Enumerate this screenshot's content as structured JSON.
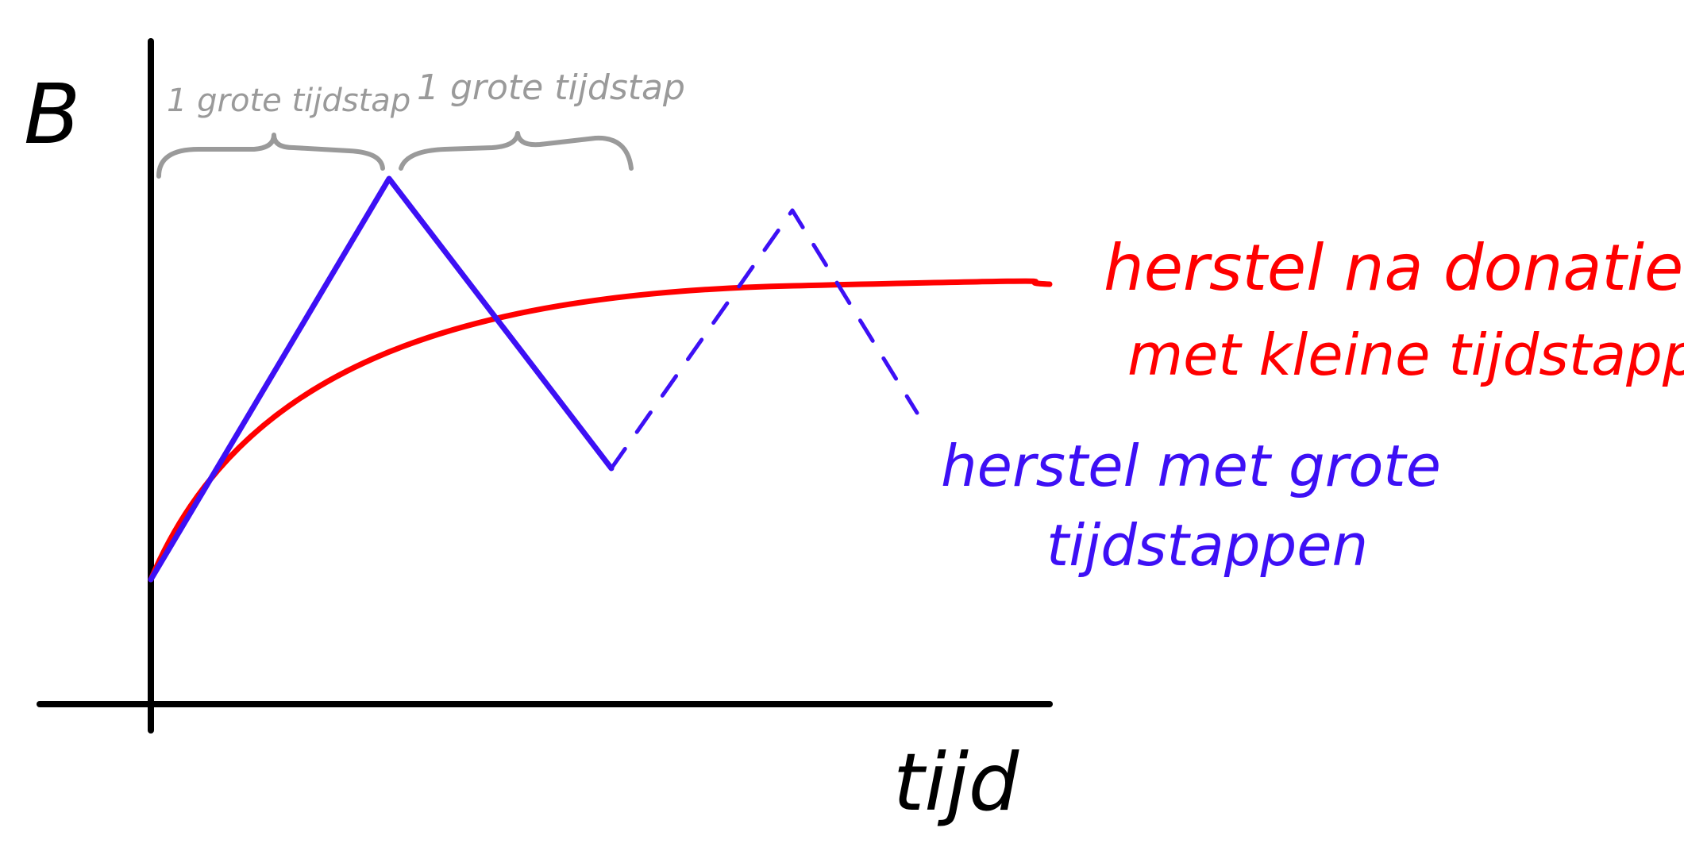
{
  "axes": {
    "y_label": "B",
    "x_label": "tijd"
  },
  "braces": {
    "first": "1 grote tijdstap",
    "second": "1 grote tijdstap"
  },
  "legend": {
    "red_line1": "herstel na donatie",
    "red_line2": "met kleine tijdstappen",
    "blue_line1": "herstel met grote",
    "blue_line2": "tijdstappen"
  },
  "colors": {
    "axes": "#000000",
    "red_curve": "#ff0000",
    "blue_curve": "#3d10f5",
    "brace": "#9a9a9a"
  }
}
